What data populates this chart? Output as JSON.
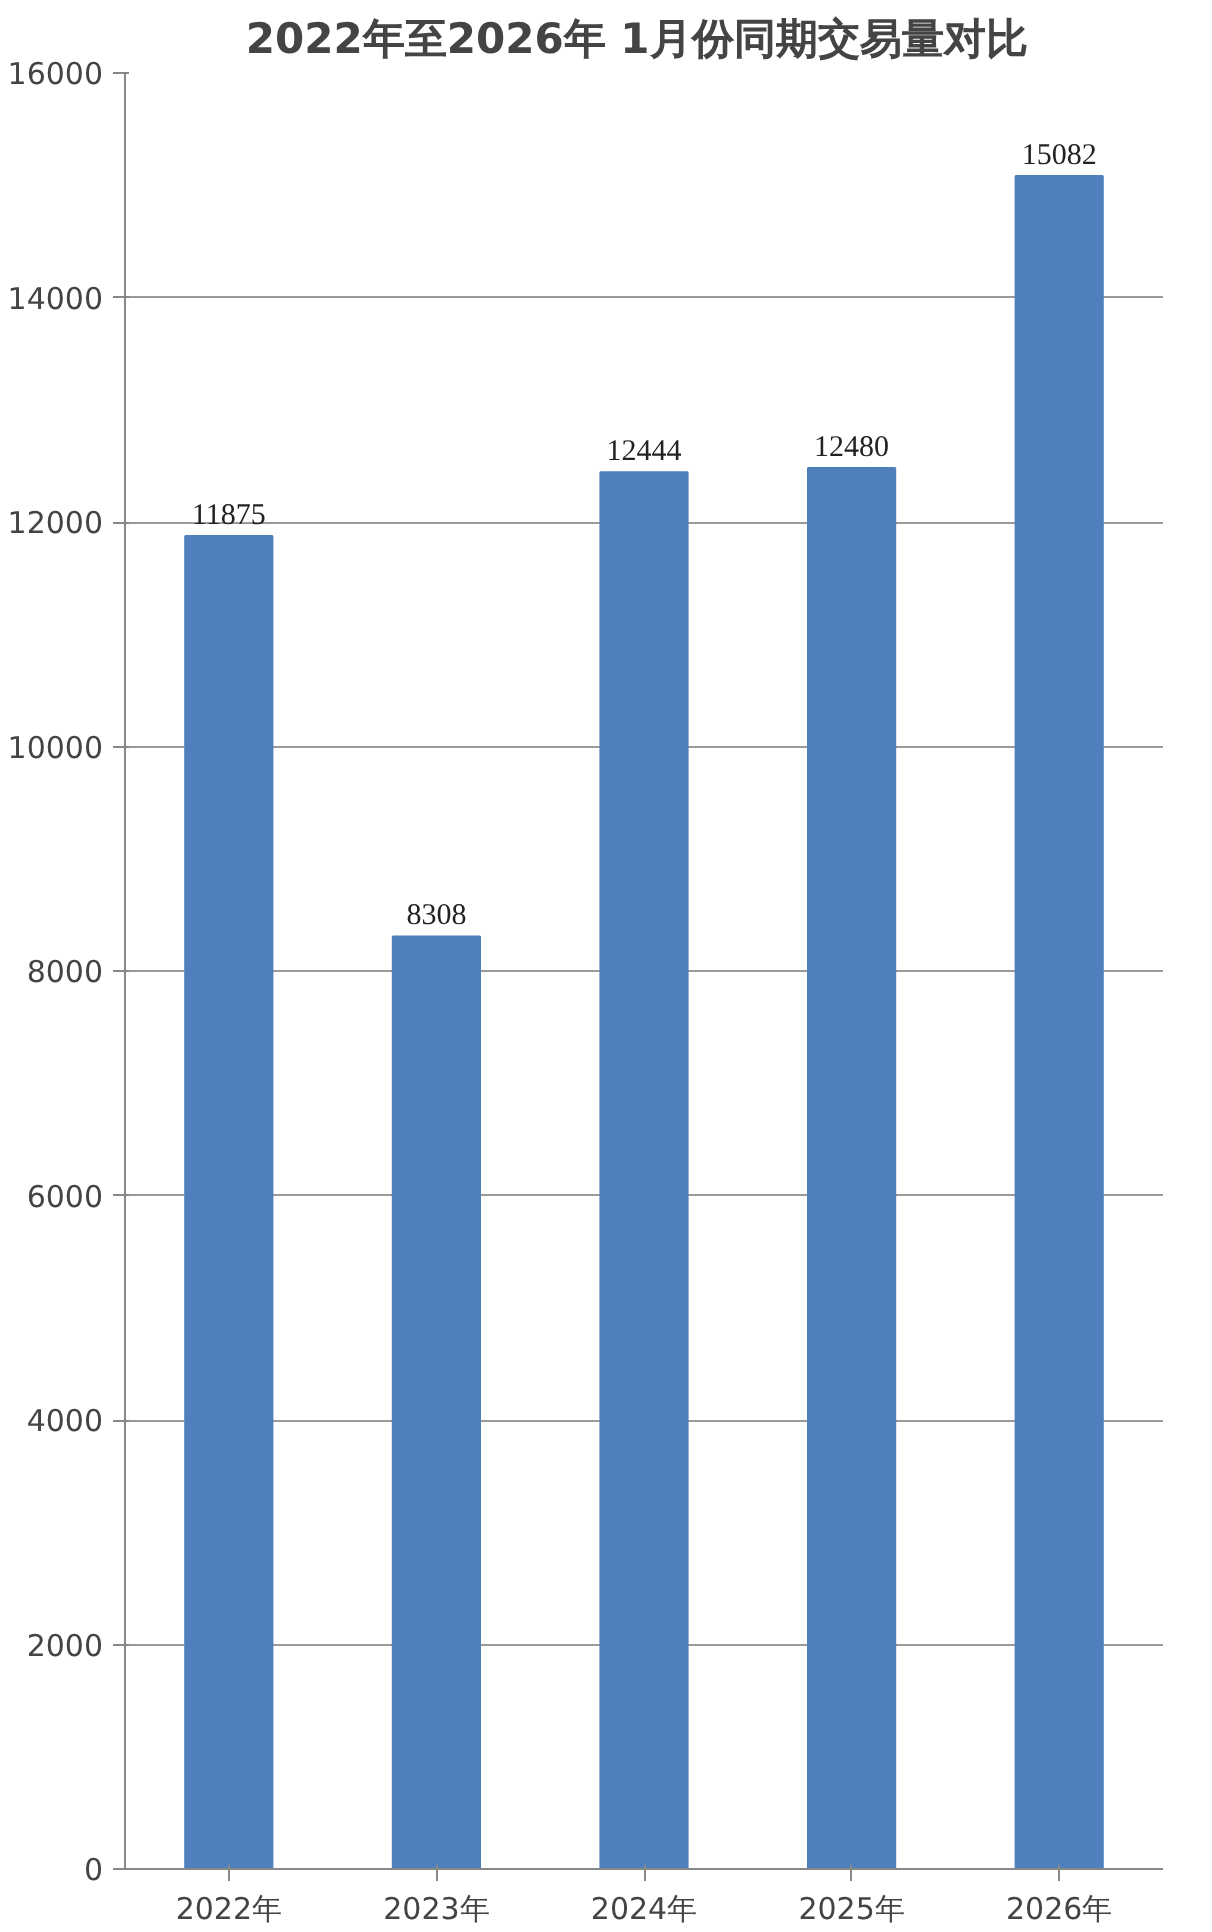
{
  "chart_data": {
    "type": "bar",
    "title": "2022年至2026年  1月份同期交易量对比",
    "categories": [
      "2022年",
      "2023年",
      "2024年",
      "2025年",
      "2026年"
    ],
    "values": [
      11875,
      8308,
      12444,
      12480,
      15082
    ],
    "color": "#4f7fbd",
    "ylim": [
      0,
      16000
    ],
    "yticks": [
      0,
      2000,
      4000,
      6000,
      8000,
      10000,
      12000,
      14000,
      16000
    ],
    "grid": "y",
    "data_labels": true
  }
}
